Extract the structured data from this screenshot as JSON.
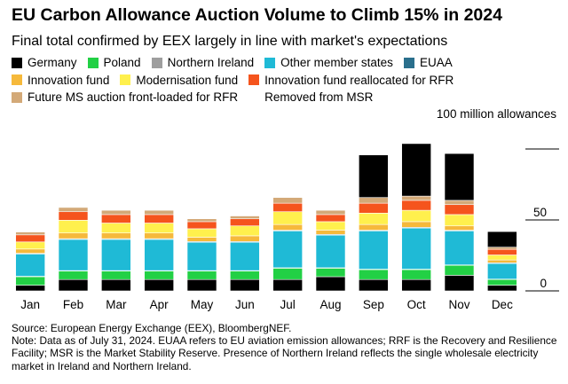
{
  "chart_data": {
    "type": "bar",
    "stacked": true,
    "title": "EU Carbon Allowance Auction Volume to Climb 15% in 2024",
    "subtitle": "Final total confirmed by EEX largely in line with market's expectations",
    "ylabel": "100 million allowances",
    "ylim": [
      0,
      100
    ],
    "yticks": [
      0,
      50
    ],
    "grid": false,
    "legend_position": "top-left",
    "categories": [
      "Jan",
      "Feb",
      "Mar",
      "Apr",
      "May",
      "Jun",
      "Jul",
      "Aug",
      "Sep",
      "Oct",
      "Nov",
      "Dec"
    ],
    "series": [
      {
        "name": "Germany",
        "color": "#000000",
        "values": [
          4,
          8,
          8,
          8,
          8,
          8,
          8,
          10,
          8,
          8,
          11,
          4
        ]
      },
      {
        "name": "Poland",
        "color": "#22d045",
        "values": [
          6,
          6,
          6,
          6,
          6,
          6,
          8,
          6,
          7,
          7,
          7,
          4
        ]
      },
      {
        "name": "Northern Ireland",
        "color": "#9e9e9e",
        "values": [
          0.3,
          0.3,
          0.3,
          0.3,
          0.3,
          0.3,
          0.3,
          0.3,
          0.3,
          0.3,
          0.3,
          0.3
        ]
      },
      {
        "name": "Other member states",
        "color": "#1fbad6",
        "values": [
          15.7,
          22,
          22,
          22,
          20,
          20,
          26,
          23,
          27,
          29,
          24,
          11
        ]
      },
      {
        "name": "EUAA",
        "color": "#2a6f8c",
        "values": [
          0.5,
          0.5,
          0.5,
          0.5,
          0.5,
          0.5,
          0.5,
          0.5,
          0.5,
          0.5,
          0.5,
          0.5
        ]
      },
      {
        "name": "Innovation fund",
        "color": "#f6b93b",
        "values": [
          3,
          4,
          4,
          4,
          3,
          4,
          4,
          3,
          4,
          4,
          3,
          2
        ]
      },
      {
        "name": "Modernisation fund",
        "color": "#fff04d",
        "values": [
          5,
          9,
          7,
          7,
          6,
          7,
          9,
          6,
          8,
          8,
          8,
          3.5
        ]
      },
      {
        "name": "Innovation fund reallocated for RFR",
        "color": "#f5541d",
        "values": [
          5,
          6,
          6,
          6,
          5,
          5,
          6,
          5,
          7,
          7,
          7,
          4
        ]
      },
      {
        "name": "Future MS auction front-loaded for RFR",
        "color": "#d3a978",
        "values": [
          2,
          3,
          3,
          3,
          2,
          2,
          4,
          3,
          4,
          3,
          3,
          1.5
        ]
      },
      {
        "name": "Removed from MSR",
        "color": null,
        "values": [
          0,
          0,
          0,
          0,
          0,
          0,
          0,
          0,
          30,
          37,
          33,
          11
        ]
      }
    ]
  },
  "footer": {
    "source": "Source: European Energy Exchange (EEX), BloombergNEF.",
    "note": "Note: Data as of July 31, 2024. EUAA refers to EU aviation emission allowances; RRF is the Recovery and Resilience Facility; MSR is the Market Stability Reserve. Presence of Northern Ireland reflects the single wholesale electricity market in Ireland and Northern Ireland."
  }
}
